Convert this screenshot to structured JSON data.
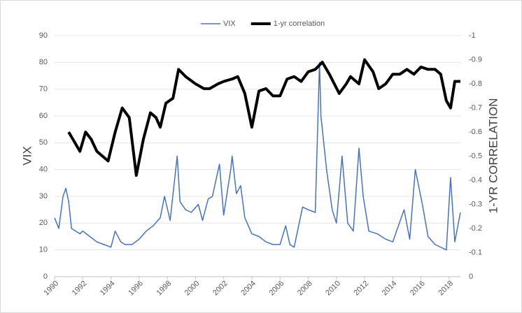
{
  "chart_data": {
    "type": "line",
    "y_label": "VIX",
    "y2_label": "1-YR CORRELATION",
    "xlim": [
      1990,
      2018.8
    ],
    "xticks": [
      1990,
      1992,
      1994,
      1996,
      1998,
      2000,
      2002,
      2004,
      2006,
      2008,
      2010,
      2012,
      2014,
      2016,
      2018
    ],
    "ylim": [
      0,
      90
    ],
    "yticks": [
      0,
      10,
      20,
      30,
      40,
      50,
      60,
      70,
      80,
      90
    ],
    "y2lim": [
      0,
      -1
    ],
    "y2ticks": [
      0,
      -0.1,
      -0.2,
      -0.3,
      -0.4,
      -0.5,
      -0.6,
      -0.7,
      -0.8,
      -0.9,
      -1
    ],
    "grid": true,
    "legend": "top",
    "series": [
      {
        "name": "VIX",
        "color": "#4472c4",
        "width": 1.5,
        "x": [
          1990.0,
          1990.3,
          1990.6,
          1990.8,
          1991.0,
          1991.2,
          1991.5,
          1991.8,
          1992.0,
          1992.5,
          1993.0,
          1993.5,
          1994.0,
          1994.3,
          1994.7,
          1995.0,
          1995.5,
          1996.0,
          1996.5,
          1997.0,
          1997.5,
          1997.8,
          1998.2,
          1998.7,
          1998.9,
          1999.3,
          1999.7,
          2000.2,
          2000.5,
          2000.9,
          2001.2,
          2001.7,
          2002.0,
          2002.5,
          2002.6,
          2002.9,
          2003.2,
          2003.5,
          2004.0,
          2004.5,
          2005.0,
          2005.5,
          2006.0,
          2006.4,
          2006.7,
          2007.0,
          2007.6,
          2008.0,
          2008.5,
          2008.8,
          2008.9,
          2009.3,
          2009.7,
          2010.0,
          2010.4,
          2010.8,
          2011.2,
          2011.6,
          2011.9,
          2012.3,
          2012.9,
          2013.5,
          2014.0,
          2014.8,
          2015.2,
          2015.6,
          2016.1,
          2016.5,
          2017.0,
          2017.8,
          2018.1,
          2018.4,
          2018.8
        ],
        "values": [
          22,
          18,
          30,
          33,
          28,
          18,
          17,
          16,
          17,
          15,
          13,
          12,
          11,
          17,
          13,
          12,
          12,
          14,
          17,
          19,
          22,
          30,
          21,
          45,
          28,
          25,
          24,
          27,
          21,
          29,
          30,
          42,
          23,
          40,
          45,
          31,
          34,
          22,
          16,
          15,
          13,
          12,
          12,
          19,
          12,
          11,
          26,
          25,
          24,
          80,
          60,
          40,
          25,
          20,
          45,
          20,
          17,
          48,
          30,
          17,
          16,
          14,
          13,
          25,
          14,
          40,
          27,
          15,
          12,
          10,
          37,
          13,
          24
        ]
      },
      {
        "name": "1-yr correlation",
        "color": "#000000",
        "width": 4,
        "axis": "y2",
        "x": [
          1991.0,
          1991.4,
          1991.8,
          1992.2,
          1992.6,
          1993.0,
          1993.4,
          1993.8,
          1994.3,
          1994.8,
          1995.3,
          1995.8,
          1996.3,
          1996.8,
          1997.2,
          1997.5,
          1997.9,
          1998.4,
          1998.8,
          1999.3,
          2000.0,
          2000.6,
          2001.0,
          2001.6,
          2002.0,
          2002.6,
          2003.0,
          2003.5,
          2004.0,
          2004.5,
          2005.0,
          2005.5,
          2006.0,
          2006.5,
          2007.0,
          2007.5,
          2008.0,
          2008.5,
          2009.0,
          2009.5,
          2010.2,
          2010.7,
          2011.0,
          2011.6,
          2012.0,
          2012.6,
          2013.0,
          2013.5,
          2014.0,
          2014.5,
          2015.0,
          2015.5,
          2016.0,
          2016.5,
          2017.0,
          2017.4,
          2017.8,
          2018.1,
          2018.4,
          2018.8
        ],
        "values": [
          -0.6,
          -0.56,
          -0.52,
          -0.6,
          -0.57,
          -0.52,
          -0.5,
          -0.48,
          -0.6,
          -0.7,
          -0.66,
          -0.42,
          -0.57,
          -0.68,
          -0.66,
          -0.62,
          -0.72,
          -0.74,
          -0.86,
          -0.83,
          -0.8,
          -0.78,
          -0.78,
          -0.8,
          -0.81,
          -0.82,
          -0.83,
          -0.76,
          -0.62,
          -0.77,
          -0.78,
          -0.75,
          -0.75,
          -0.82,
          -0.83,
          -0.81,
          -0.85,
          -0.86,
          -0.89,
          -0.84,
          -0.76,
          -0.8,
          -0.83,
          -0.8,
          -0.9,
          -0.85,
          -0.78,
          -0.8,
          -0.84,
          -0.84,
          -0.86,
          -0.84,
          -0.87,
          -0.86,
          -0.86,
          -0.84,
          -0.73,
          -0.7,
          -0.81,
          -0.81
        ]
      }
    ]
  }
}
